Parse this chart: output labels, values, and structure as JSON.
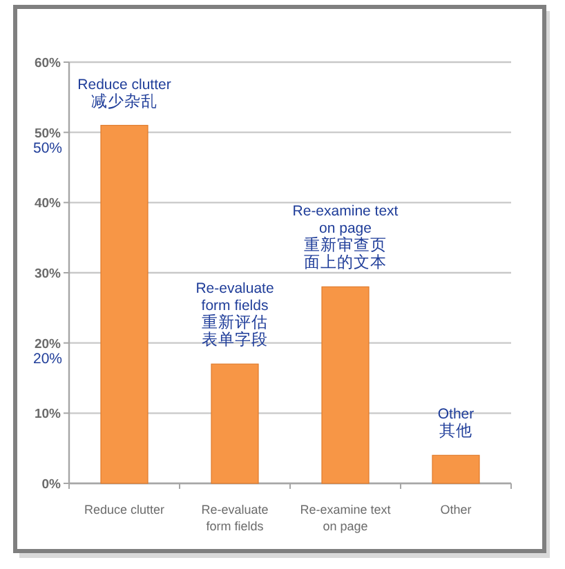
{
  "chart_data": {
    "type": "bar",
    "categories": [
      "Reduce clutter",
      "Re-evaluate form fields",
      "Re-examine text on page",
      "Other"
    ],
    "values": [
      51,
      17,
      28,
      4
    ],
    "color": "#f79646",
    "ylim": [
      0,
      60
    ],
    "yticks": [
      {
        "value": 0,
        "label": "0%"
      },
      {
        "value": 10,
        "label": "10%"
      },
      {
        "value": 20,
        "label": "20%"
      },
      {
        "value": 30,
        "label": "30%"
      },
      {
        "value": 40,
        "label": "40%"
      },
      {
        "value": 50,
        "label": "50%"
      },
      {
        "value": 60,
        "label": "60%"
      }
    ],
    "grid": "y",
    "annotations": [
      {
        "text": "Reduce clutter\n减少杂乱",
        "x": "Reduce clutter",
        "y": 51
      },
      {
        "text": "Re-evaluate\nform fields\n重新评估表单字段",
        "x": "Re-evaluate form fields",
        "y": 17
      },
      {
        "text": "Re-examine text\non page\n重新审查页面上的文本",
        "x": "Re-examine text on page",
        "y": 28
      },
      {
        "text": "Other\n其他",
        "x": "Other",
        "y": 4
      },
      "50%",
      "20%"
    ]
  }
}
